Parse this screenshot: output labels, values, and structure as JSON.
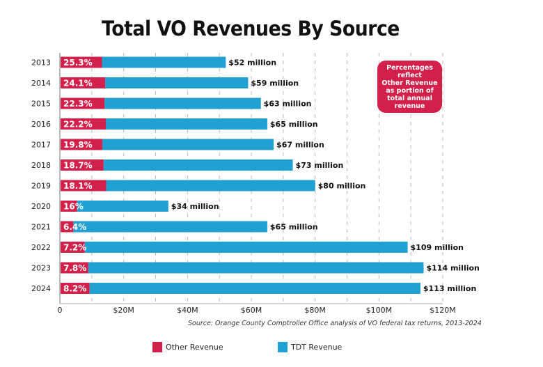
{
  "chart_data": {
    "type": "bar",
    "orientation": "horizontal",
    "stacked": true,
    "title": "Total VO Revenues By Source",
    "xlabel": "",
    "ylabel": "",
    "xlim": [
      0,
      120
    ],
    "x_unit": "million USD",
    "x_ticks": [
      0,
      20,
      40,
      60,
      80,
      100,
      120
    ],
    "x_tick_labels": [
      "0",
      "$20M",
      "$40M",
      "$60M",
      "$80M",
      "$100M",
      "$120M"
    ],
    "grid": "vertical dashed, every $10M",
    "categories": [
      "2013",
      "2014",
      "2015",
      "2016",
      "2017",
      "2018",
      "2019",
      "2020",
      "2021",
      "2022",
      "2023",
      "2024"
    ],
    "totals": [
      52,
      59,
      63,
      65,
      67,
      73,
      80,
      34,
      65,
      109,
      114,
      113
    ],
    "total_labels": [
      "$52 million",
      "$59 million",
      "$63 million",
      "$65 million",
      "$67 million",
      "$73 million",
      "$80 million",
      "$34 million",
      "$65 million",
      "$109 million",
      "$114 million",
      "$113 million"
    ],
    "other_pct": [
      25.3,
      24.1,
      22.3,
      22.2,
      19.8,
      18.7,
      18.1,
      16,
      6.4,
      7.2,
      7.8,
      8.2
    ],
    "other_pct_labels": [
      "25.3%",
      "24.1%",
      "22.3%",
      "22.2%",
      "19.8%",
      "18.7%",
      "18.1%",
      "16%",
      "6.4%",
      "7.2%",
      "7.8%",
      "8.2%"
    ],
    "series": [
      {
        "name": "Other Revenue",
        "color": "#d3204a",
        "values": [
          13.2,
          14.2,
          14.0,
          14.4,
          13.3,
          13.7,
          14.5,
          5.4,
          4.2,
          7.8,
          8.9,
          9.3
        ]
      },
      {
        "name": "TDT Revenue",
        "color": "#21a0d2",
        "values": [
          38.8,
          44.8,
          49.0,
          50.6,
          53.7,
          59.3,
          65.5,
          28.6,
          60.8,
          101.2,
          105.1,
          103.7
        ]
      }
    ],
    "legend": "bottom-left",
    "annotation": "Percentages reflect Other Revenue as portion of total annual revenue",
    "source": "Source: Orange County Comptroller Office analysis of VO federal tax returns, 2013-2024"
  },
  "note_lines": [
    "Percentages",
    "reflect",
    "Other Revenue",
    "as portion of",
    "total annual",
    "revenue"
  ],
  "legend": [
    {
      "label": "Other Revenue",
      "color": "#d3204a"
    },
    {
      "label": "TDT Revenue",
      "color": "#21a0d2"
    }
  ]
}
